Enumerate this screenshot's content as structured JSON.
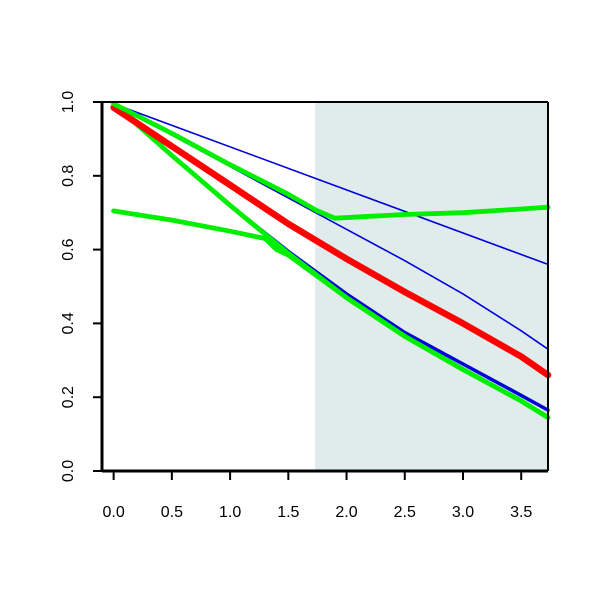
{
  "chart_data": {
    "type": "line",
    "title": "",
    "xlabel": "",
    "ylabel": "",
    "xlim": [
      -0.1,
      3.73
    ],
    "ylim": [
      0.0,
      1.0
    ],
    "x_ticks": [
      0.0,
      0.5,
      1.0,
      1.5,
      2.0,
      2.5,
      3.0,
      3.5
    ],
    "x_tick_labels": [
      "0.0",
      "0.5",
      "1.0",
      "1.5",
      "2.0",
      "2.5",
      "3.0",
      "3.5"
    ],
    "y_ticks": [
      0.0,
      0.2,
      0.4,
      0.6,
      0.8,
      1.0
    ],
    "y_tick_labels": [
      "0.0",
      "0.2",
      "0.4",
      "0.6",
      "0.8",
      "1.0"
    ],
    "grid": false,
    "legend": "none",
    "shaded_region": {
      "x_start": 1.73,
      "x_end": 3.73,
      "color": "#e0ecec"
    },
    "series": [
      {
        "color": "#0000dd",
        "width": "thin",
        "x": [
          0.0,
          3.73
        ],
        "y": [
          0.995,
          0.56
        ]
      },
      {
        "color": "#0000dd",
        "width": "thin",
        "x": [
          0.0,
          0.5,
          1.0,
          1.5,
          2.0,
          2.5,
          3.0,
          3.5,
          3.73
        ],
        "y": [
          0.995,
          0.91,
          0.825,
          0.74,
          0.655,
          0.57,
          0.48,
          0.38,
          0.33
        ]
      },
      {
        "color": "#0000dd",
        "width": "medium",
        "x": [
          0.0,
          0.5,
          1.0,
          1.5,
          2.0,
          2.5,
          3.0,
          3.5,
          3.73
        ],
        "y": [
          0.995,
          0.855,
          0.72,
          0.595,
          0.48,
          0.375,
          0.29,
          0.205,
          0.165
        ]
      },
      {
        "color": "#00ee00",
        "width": "thick",
        "x": [
          0.0,
          0.5,
          1.0,
          1.5,
          2.0,
          2.5,
          3.0,
          3.5,
          3.73
        ],
        "y": [
          0.995,
          0.855,
          0.72,
          0.59,
          0.47,
          0.365,
          0.275,
          0.19,
          0.145
        ]
      },
      {
        "color": "#ff0000",
        "width": "thickest",
        "x": [
          0.0,
          0.5,
          1.0,
          1.5,
          2.0,
          2.5,
          3.0,
          3.5,
          3.73
        ],
        "y": [
          0.985,
          0.88,
          0.775,
          0.67,
          0.575,
          0.485,
          0.4,
          0.31,
          0.26
        ]
      },
      {
        "color": "#00ee00",
        "width": "thick",
        "x": [
          0.0,
          0.5,
          1.0,
          1.5,
          1.75,
          1.9,
          2.5,
          3.0,
          3.5,
          3.73
        ],
        "y": [
          0.995,
          0.915,
          0.83,
          0.75,
          0.705,
          0.685,
          0.695,
          0.7,
          0.71,
          0.715
        ]
      },
      {
        "color": "#00ee00",
        "width": "thick",
        "x": [
          0.0,
          0.5,
          1.0,
          1.3,
          1.4,
          1.5,
          2.0,
          2.5,
          3.0,
          3.5,
          3.73
        ],
        "y": [
          0.705,
          0.68,
          0.65,
          0.63,
          0.6,
          0.585,
          0.47,
          0.365,
          0.275,
          0.19,
          0.145
        ]
      }
    ]
  }
}
